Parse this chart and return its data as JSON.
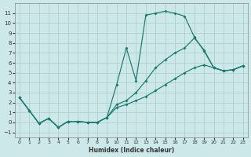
{
  "xlabel": "Humidex (Indice chaleur)",
  "background_color": "#cce8e8",
  "grid_color": "#aacccc",
  "line_color": "#1a7a6e",
  "xlim": [
    -0.5,
    23.5
  ],
  "ylim": [
    -1.5,
    12.0
  ],
  "xticks": [
    0,
    1,
    2,
    3,
    4,
    5,
    6,
    7,
    8,
    9,
    10,
    11,
    12,
    13,
    14,
    15,
    16,
    17,
    18,
    19,
    20,
    21,
    22,
    23
  ],
  "yticks": [
    -1,
    0,
    1,
    2,
    3,
    4,
    5,
    6,
    7,
    8,
    9,
    10,
    11
  ],
  "line1_x": [
    0,
    1,
    2,
    3,
    4,
    5,
    6,
    7,
    8,
    9,
    10,
    11,
    12,
    13,
    14,
    15,
    16,
    17,
    18,
    19,
    20,
    21,
    22,
    23
  ],
  "line1_y": [
    2.5,
    1.2,
    -0.1,
    0.4,
    -0.5,
    0.1,
    0.1,
    0.0,
    0.0,
    0.5,
    3.8,
    7.5,
    4.2,
    10.8,
    11.0,
    11.2,
    11.0,
    10.7,
    8.6,
    7.2,
    5.5,
    5.2,
    5.3,
    5.7
  ],
  "line2_x": [
    0,
    1,
    2,
    3,
    4,
    5,
    6,
    7,
    8,
    9,
    10,
    11,
    12,
    13,
    14,
    15,
    16,
    17,
    18,
    19,
    20,
    21,
    22,
    23
  ],
  "line2_y": [
    2.5,
    1.2,
    -0.1,
    0.4,
    -0.5,
    0.1,
    0.1,
    0.0,
    0.0,
    0.5,
    1.8,
    2.2,
    3.0,
    4.2,
    5.5,
    6.3,
    7.0,
    7.5,
    8.5,
    7.3,
    5.5,
    5.2,
    5.3,
    5.7
  ],
  "line3_x": [
    0,
    1,
    2,
    3,
    4,
    5,
    6,
    7,
    8,
    9,
    10,
    11,
    12,
    13,
    14,
    15,
    16,
    17,
    18,
    19,
    20,
    21,
    22,
    23
  ],
  "line3_y": [
    2.5,
    1.2,
    -0.1,
    0.4,
    -0.5,
    0.1,
    0.1,
    0.0,
    0.0,
    0.5,
    1.5,
    1.8,
    2.2,
    2.6,
    3.2,
    3.8,
    4.4,
    5.0,
    5.5,
    5.8,
    5.5,
    5.2,
    5.3,
    5.7
  ]
}
